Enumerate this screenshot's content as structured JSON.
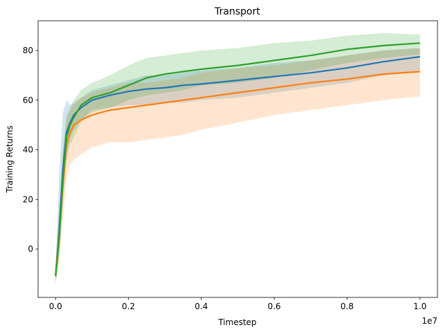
{
  "chart_data": {
    "type": "line",
    "title": "Transport",
    "xlabel": "Timestep",
    "ylabel": "Training Returns",
    "x_offset_label": "1e7",
    "xlim": [
      -480000.0,
      10480000.0
    ],
    "ylim": [
      -19.5,
      92
    ],
    "xticks": [
      0,
      2000000,
      4000000,
      6000000,
      8000000,
      10000000
    ],
    "xtick_labels": [
      "0.0",
      "0.2",
      "0.4",
      "0.6",
      "0.8",
      "1.0"
    ],
    "yticks": [
      0,
      20,
      40,
      60,
      80
    ],
    "ytick_labels": [
      "0",
      "20",
      "40",
      "60",
      "80"
    ],
    "grid": false,
    "legend": "none",
    "series": [
      {
        "color": "#1f77b4",
        "x": [
          0,
          100000,
          200000,
          300000,
          400000,
          500000,
          700000,
          1000000,
          1500000,
          2000000,
          2500000,
          3000000,
          3500000,
          4000000,
          5000000,
          6000000,
          7000000,
          8000000,
          9000000,
          10000000
        ],
        "mean": [
          -10.5,
          8,
          32,
          47,
          51,
          54,
          57,
          60,
          62,
          63.5,
          64.5,
          65,
          66,
          66.5,
          68,
          69.5,
          71,
          73,
          75.5,
          77.5
        ],
        "lower": [
          -13,
          0,
          22,
          38,
          45,
          48,
          52,
          56,
          57,
          58,
          58,
          59,
          59,
          60,
          61,
          63,
          65,
          67,
          70,
          72
        ],
        "upper": [
          -8,
          30,
          55,
          60,
          58,
          59,
          61,
          64,
          66,
          68,
          70,
          70,
          71,
          72,
          73,
          75,
          76,
          78,
          80,
          81
        ]
      },
      {
        "color": "#ff7f0e",
        "x": [
          0,
          100000,
          200000,
          300000,
          400000,
          500000,
          700000,
          1000000,
          1500000,
          2000000,
          2500000,
          3000000,
          3500000,
          4000000,
          5000000,
          6000000,
          7000000,
          8000000,
          9000000,
          10000000
        ],
        "mean": [
          -10,
          5,
          25,
          42,
          47,
          50,
          52,
          54,
          56,
          57,
          58,
          59,
          60,
          61,
          63,
          65,
          67,
          68.5,
          70.5,
          71.5
        ],
        "lower": [
          -14,
          -5,
          12,
          28,
          34,
          36,
          38,
          41,
          43,
          43,
          44,
          45,
          46,
          48,
          51,
          54,
          56,
          58,
          60,
          61.5
        ],
        "upper": [
          -7,
          15,
          38,
          52,
          56,
          58,
          61,
          63,
          65,
          67,
          67,
          68,
          69,
          71,
          73,
          74,
          76,
          78,
          80,
          81
        ]
      },
      {
        "color": "#2ca02c",
        "x": [
          0,
          100000,
          200000,
          300000,
          400000,
          500000,
          700000,
          1000000,
          1500000,
          2000000,
          2500000,
          3000000,
          3500000,
          4000000,
          5000000,
          6000000,
          7000000,
          8000000,
          9000000,
          10000000
        ],
        "mean": [
          -11,
          4,
          28,
          45,
          50,
          53,
          58,
          61,
          63,
          66,
          69,
          70.5,
          71.5,
          72.5,
          74,
          76,
          78,
          80.5,
          82,
          83
        ],
        "lower": [
          -14,
          -3,
          18,
          36,
          42,
          45,
          51,
          55,
          57,
          60,
          62,
          63,
          64,
          66,
          67,
          69,
          72,
          75,
          77,
          78.5
        ],
        "upper": [
          -8,
          14,
          40,
          54,
          57,
          60,
          64,
          67,
          70,
          74,
          77,
          78,
          79,
          80,
          81,
          83,
          84,
          86,
          87,
          86.5
        ]
      }
    ]
  }
}
